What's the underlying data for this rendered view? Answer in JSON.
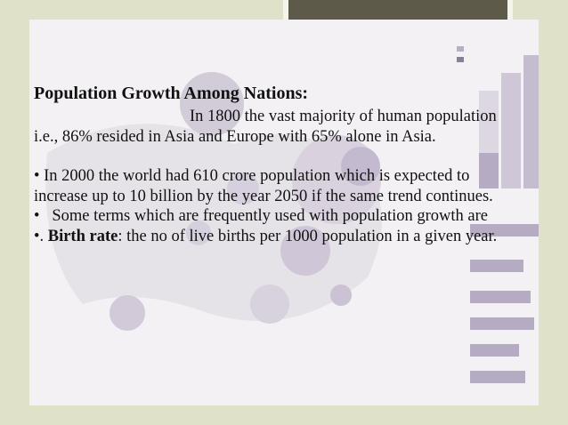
{
  "slide": {
    "title": "Population Growth Among  Nations:",
    "intro": "In 1800 the vast majority of human population i.e., 86% resided in Asia and Europe with 65% alone in Asia.",
    "bullets": [
      {
        "marker": "•",
        "text": "In 2000 the world had 610 crore  population which is expected to increase up to 10 billion by the year 2050 if the same trend continues."
      },
      {
        "marker": "•",
        "text": "Some terms which are frequently used with population growth are"
      },
      {
        "marker": "•.",
        "term": "Birth rate",
        "text": ": the no of live births per 1000 population in a given year."
      }
    ]
  }
}
